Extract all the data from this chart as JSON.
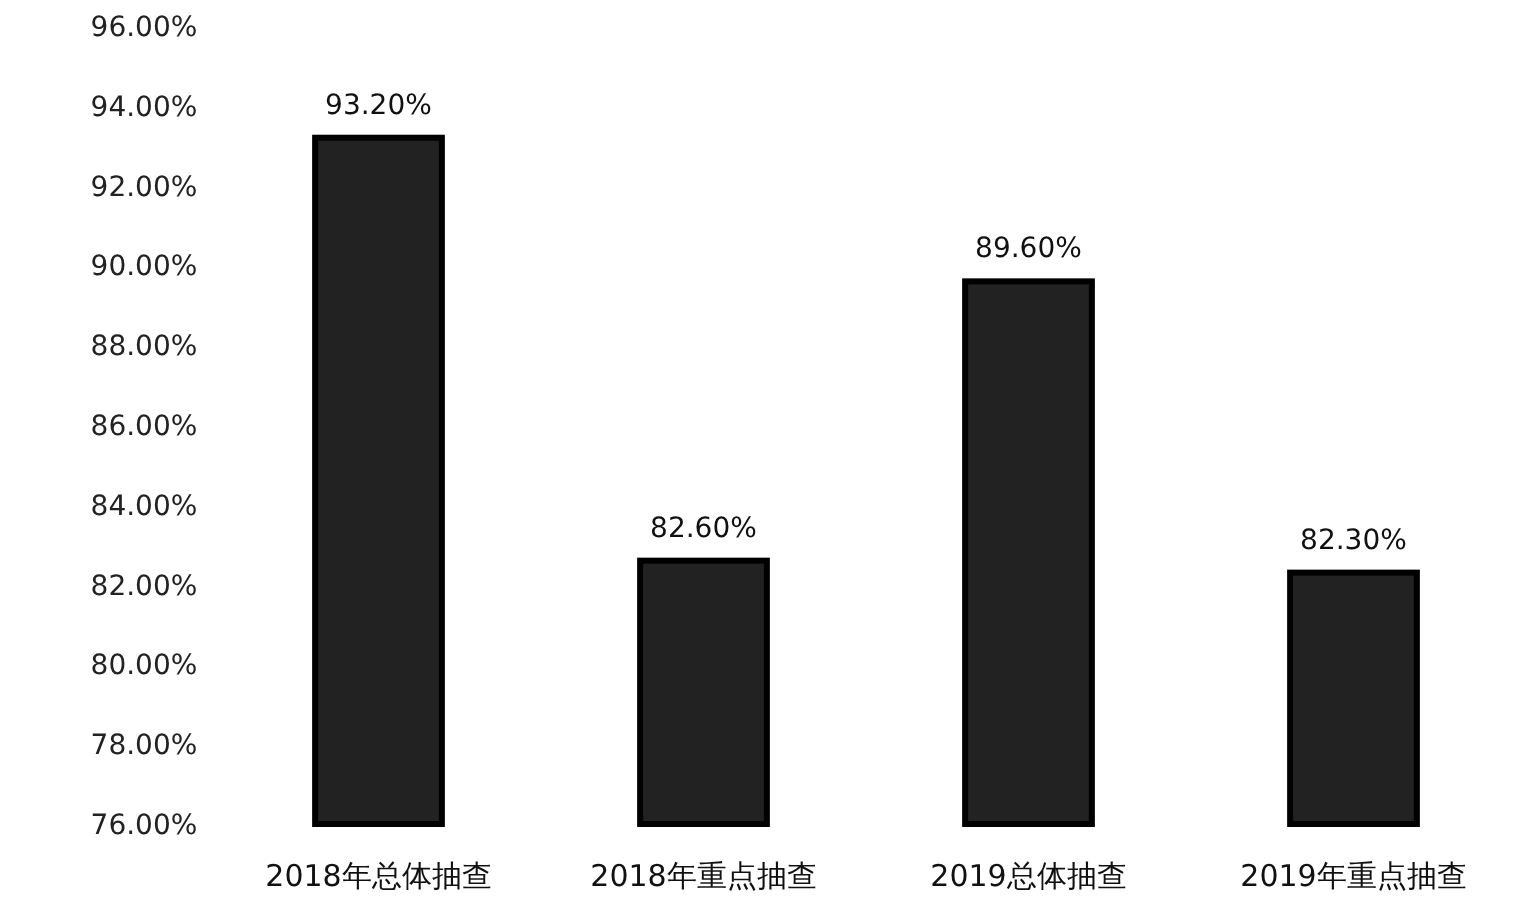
{
  "chart_data": {
    "type": "bar",
    "categories": [
      "2018年总体抽查",
      "2018年重点抽查",
      "2019总体抽查",
      "2019年重点抽查"
    ],
    "values": [
      93.2,
      82.6,
      89.6,
      82.3
    ],
    "value_labels": [
      "93.20%",
      "82.60%",
      "89.60%",
      "82.30%"
    ],
    "color": "#222222",
    "ylim": [
      76,
      96
    ],
    "yticks": [
      {
        "value": 76,
        "label": "76.00%"
      },
      {
        "value": 78,
        "label": "78.00%"
      },
      {
        "value": 80,
        "label": "80.00%"
      },
      {
        "value": 82,
        "label": "82.00%"
      },
      {
        "value": 84,
        "label": "84.00%"
      },
      {
        "value": 86,
        "label": "86.00%"
      },
      {
        "value": 88,
        "label": "88.00%"
      },
      {
        "value": 90,
        "label": "90.00%"
      },
      {
        "value": 92,
        "label": "92.00%"
      },
      {
        "value": 94,
        "label": "94.00%"
      },
      {
        "value": 96,
        "label": "96.00%"
      }
    ]
  }
}
